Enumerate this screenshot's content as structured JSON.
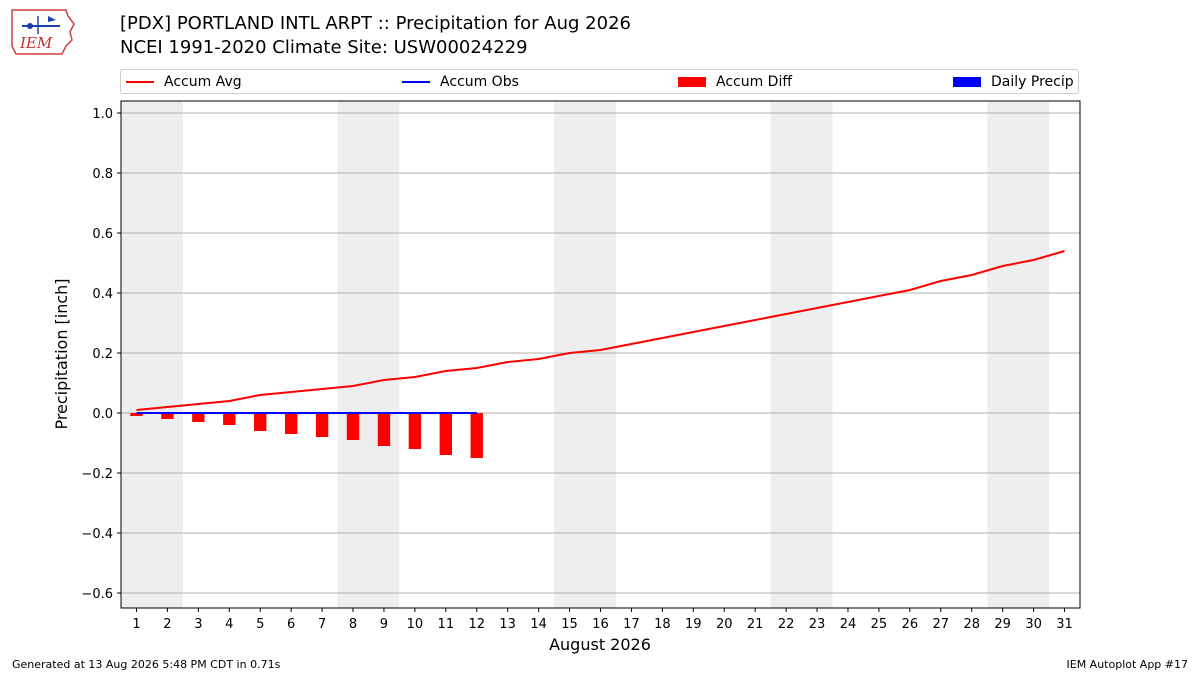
{
  "header": {
    "logo_text": "IEM",
    "title_line1": "[PDX] PORTLAND INTL ARPT :: Precipitation for Aug 2026",
    "title_line2": "NCEI 1991-2020 Climate Site: USW00024229"
  },
  "footer": {
    "left": "Generated at 13 Aug 2026 5:48 PM CDT in 0.71s",
    "right": "IEM Autoplot App #17"
  },
  "colors": {
    "accum_avg": "#ff0000",
    "accum_obs": "#0000ff",
    "accum_diff": "#ff0000",
    "daily_precip": "#0000ff",
    "weekend_shade": "#eeeeee",
    "grid": "#b0b0b0"
  },
  "chart_data": {
    "type": "line",
    "xlabel": "August 2026",
    "ylabel": "Precipitation [inch]",
    "ylim": [
      -0.65,
      1.04
    ],
    "xlim": [
      0.5,
      31.5
    ],
    "grid": true,
    "legend_position": "top",
    "legend": [
      "Accum Avg",
      "Accum Obs",
      "Accum Diff",
      "Daily Precip"
    ],
    "x": [
      1,
      2,
      3,
      4,
      5,
      6,
      7,
      8,
      9,
      10,
      11,
      12,
      13,
      14,
      15,
      16,
      17,
      18,
      19,
      20,
      21,
      22,
      23,
      24,
      25,
      26,
      27,
      28,
      29,
      30,
      31
    ],
    "x_tick_labels": [
      "1",
      "2",
      "3",
      "4",
      "5",
      "6",
      "7",
      "8",
      "9",
      "10",
      "11",
      "12",
      "13",
      "14",
      "15",
      "16",
      "17",
      "18",
      "19",
      "20",
      "21",
      "22",
      "23",
      "24",
      "25",
      "26",
      "27",
      "28",
      "29",
      "30",
      "31"
    ],
    "y_ticks": [
      -0.6,
      -0.4,
      -0.2,
      0.0,
      0.2,
      0.4,
      0.6,
      0.8,
      1.0
    ],
    "y_tick_labels": [
      "−0.6",
      "−0.4",
      "−0.2",
      "0.0",
      "0.2",
      "0.4",
      "0.6",
      "0.8",
      "1.0"
    ],
    "weekend_day_pairs": [
      [
        1,
        2
      ],
      [
        8,
        9
      ],
      [
        15,
        16
      ],
      [
        22,
        23
      ],
      [
        29,
        30
      ]
    ],
    "series": [
      {
        "name": "Accum Avg",
        "type": "line",
        "x": [
          1,
          2,
          3,
          4,
          5,
          6,
          7,
          8,
          9,
          10,
          11,
          12,
          13,
          14,
          15,
          16,
          17,
          18,
          19,
          20,
          21,
          22,
          23,
          24,
          25,
          26,
          27,
          28,
          29,
          30,
          31
        ],
        "values": [
          0.01,
          0.02,
          0.03,
          0.04,
          0.06,
          0.07,
          0.08,
          0.09,
          0.11,
          0.12,
          0.14,
          0.15,
          0.17,
          0.18,
          0.2,
          0.21,
          0.23,
          0.25,
          0.27,
          0.29,
          0.31,
          0.33,
          0.35,
          0.37,
          0.39,
          0.41,
          0.44,
          0.46,
          0.49,
          0.51,
          0.54
        ]
      },
      {
        "name": "Accum Obs",
        "type": "line",
        "x": [
          1,
          2,
          3,
          4,
          5,
          6,
          7,
          8,
          9,
          10,
          11,
          12
        ],
        "values": [
          0,
          0,
          0,
          0,
          0,
          0,
          0,
          0,
          0,
          0,
          0,
          0
        ]
      },
      {
        "name": "Accum Diff",
        "type": "bar",
        "x": [
          1,
          2,
          3,
          4,
          5,
          6,
          7,
          8,
          9,
          10,
          11,
          12
        ],
        "values": [
          -0.01,
          -0.02,
          -0.03,
          -0.04,
          -0.06,
          -0.07,
          -0.08,
          -0.09,
          -0.11,
          -0.12,
          -0.14,
          -0.15
        ]
      },
      {
        "name": "Daily Precip",
        "type": "bar",
        "x": [],
        "values": []
      }
    ]
  }
}
